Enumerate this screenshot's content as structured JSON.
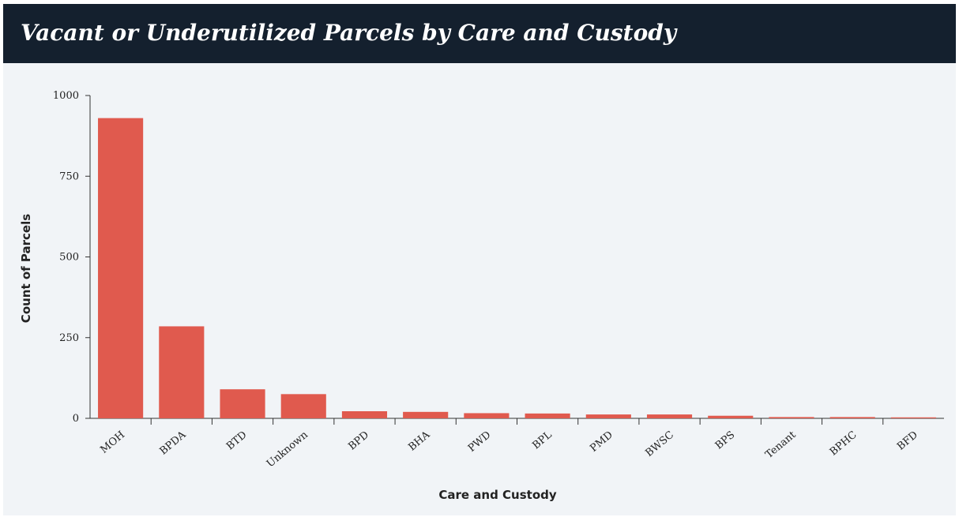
{
  "chart_data": {
    "type": "bar",
    "title": "Vacant or Underutilized Parcels by Care and Custody",
    "x_label": "Care and Custody",
    "y_label": "Count of Parcels",
    "categories": [
      "MOH",
      "BPDA",
      "BTD",
      "Unknown",
      "BPD",
      "BHA",
      "PWD",
      "BPL",
      "PMD",
      "BWSC",
      "BPS",
      "Tenant",
      "BPHC",
      "BFD"
    ],
    "values": [
      930,
      285,
      90,
      75,
      22,
      20,
      16,
      15,
      12,
      12,
      8,
      4,
      4,
      3
    ],
    "color": "#e05a4e",
    "ylim": [
      0,
      1000
    ],
    "yticks": [
      0,
      250,
      500,
      750,
      1000
    ],
    "grid": false
  }
}
